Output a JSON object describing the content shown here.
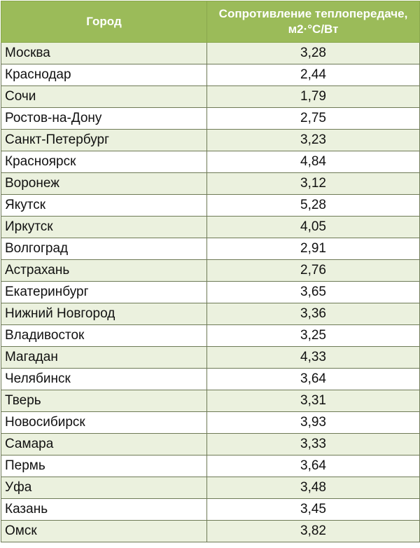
{
  "table": {
    "header": {
      "city": "Город",
      "resistance": "Сопротивление теплопередаче, м2·°С/Вт"
    },
    "rows": [
      {
        "city": "Москва",
        "value": "3,28"
      },
      {
        "city": "Краснодар",
        "value": "2,44"
      },
      {
        "city": "Сочи",
        "value": "1,79"
      },
      {
        "city": "Ростов-на-Дону",
        "value": "2,75"
      },
      {
        "city": "Санкт-Петербург",
        "value": "3,23"
      },
      {
        "city": "Красноярск",
        "value": "4,84"
      },
      {
        "city": "Воронеж",
        "value": "3,12"
      },
      {
        "city": "Якутск",
        "value": "5,28"
      },
      {
        "city": "Иркутск",
        "value": "4,05"
      },
      {
        "city": "Волгоград",
        "value": "2,91"
      },
      {
        "city": "Астрахань",
        "value": "2,76"
      },
      {
        "city": "Екатеринбург",
        "value": "3,65"
      },
      {
        "city": "Нижний Новгород",
        "value": "3,36"
      },
      {
        "city": "Владивосток",
        "value": "3,25"
      },
      {
        "city": "Магадан",
        "value": "4,33"
      },
      {
        "city": "Челябинск",
        "value": "3,64"
      },
      {
        "city": "Тверь",
        "value": "3,31"
      },
      {
        "city": "Новосибирск",
        "value": "3,93"
      },
      {
        "city": "Самара",
        "value": "3,33"
      },
      {
        "city": "Пермь",
        "value": "3,64"
      },
      {
        "city": "Уфа",
        "value": "3,48"
      },
      {
        "city": "Казань",
        "value": "3,45"
      },
      {
        "city": "Омск",
        "value": "3,82"
      }
    ]
  },
  "colors": {
    "header_bg": "#9bbb59",
    "header_text": "#ffffff",
    "band_odd": "#ebf1de",
    "band_even": "#ffffff",
    "grid": "#6e7a56"
  }
}
